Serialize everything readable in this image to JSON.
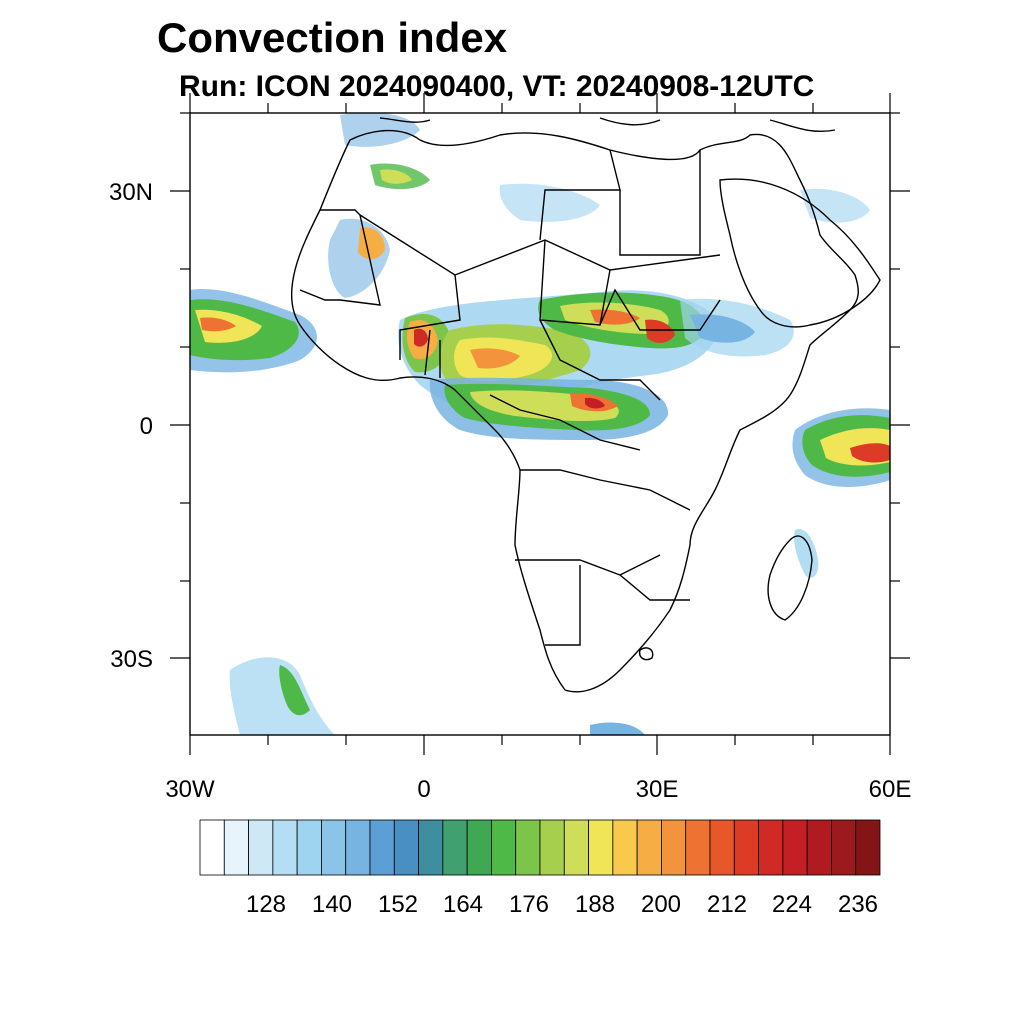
{
  "header": {
    "title": "Convection index",
    "subtitle": "Run: ICON 2024090400,  VT: 20240908-12UTC"
  },
  "map": {
    "lat_labels": [
      "30N",
      "0",
      "30S"
    ],
    "lon_labels": [
      "30W",
      "0",
      "30E",
      "60E"
    ]
  },
  "colorbar": {
    "labels": [
      "128",
      "140",
      "152",
      "164",
      "176",
      "188",
      "200",
      "212",
      "224",
      "236"
    ],
    "colors": [
      "#ffffff",
      "#e8f4fb",
      "#cfe8f6",
      "#b5def4",
      "#9fd4f0",
      "#8cc4e8",
      "#78b4e2",
      "#5c9fd4",
      "#4a8fc4",
      "#3f8ea0",
      "#40a070",
      "#3ea855",
      "#4fb948",
      "#7cc44a",
      "#a6cf4e",
      "#cede58",
      "#efe556",
      "#f7ca4e",
      "#f6ad44",
      "#f3943c",
      "#ee7232",
      "#e6572a",
      "#dc3b26",
      "#d02a26",
      "#c41f25",
      "#b21a22",
      "#9c1a1e",
      "#841516"
    ]
  }
}
